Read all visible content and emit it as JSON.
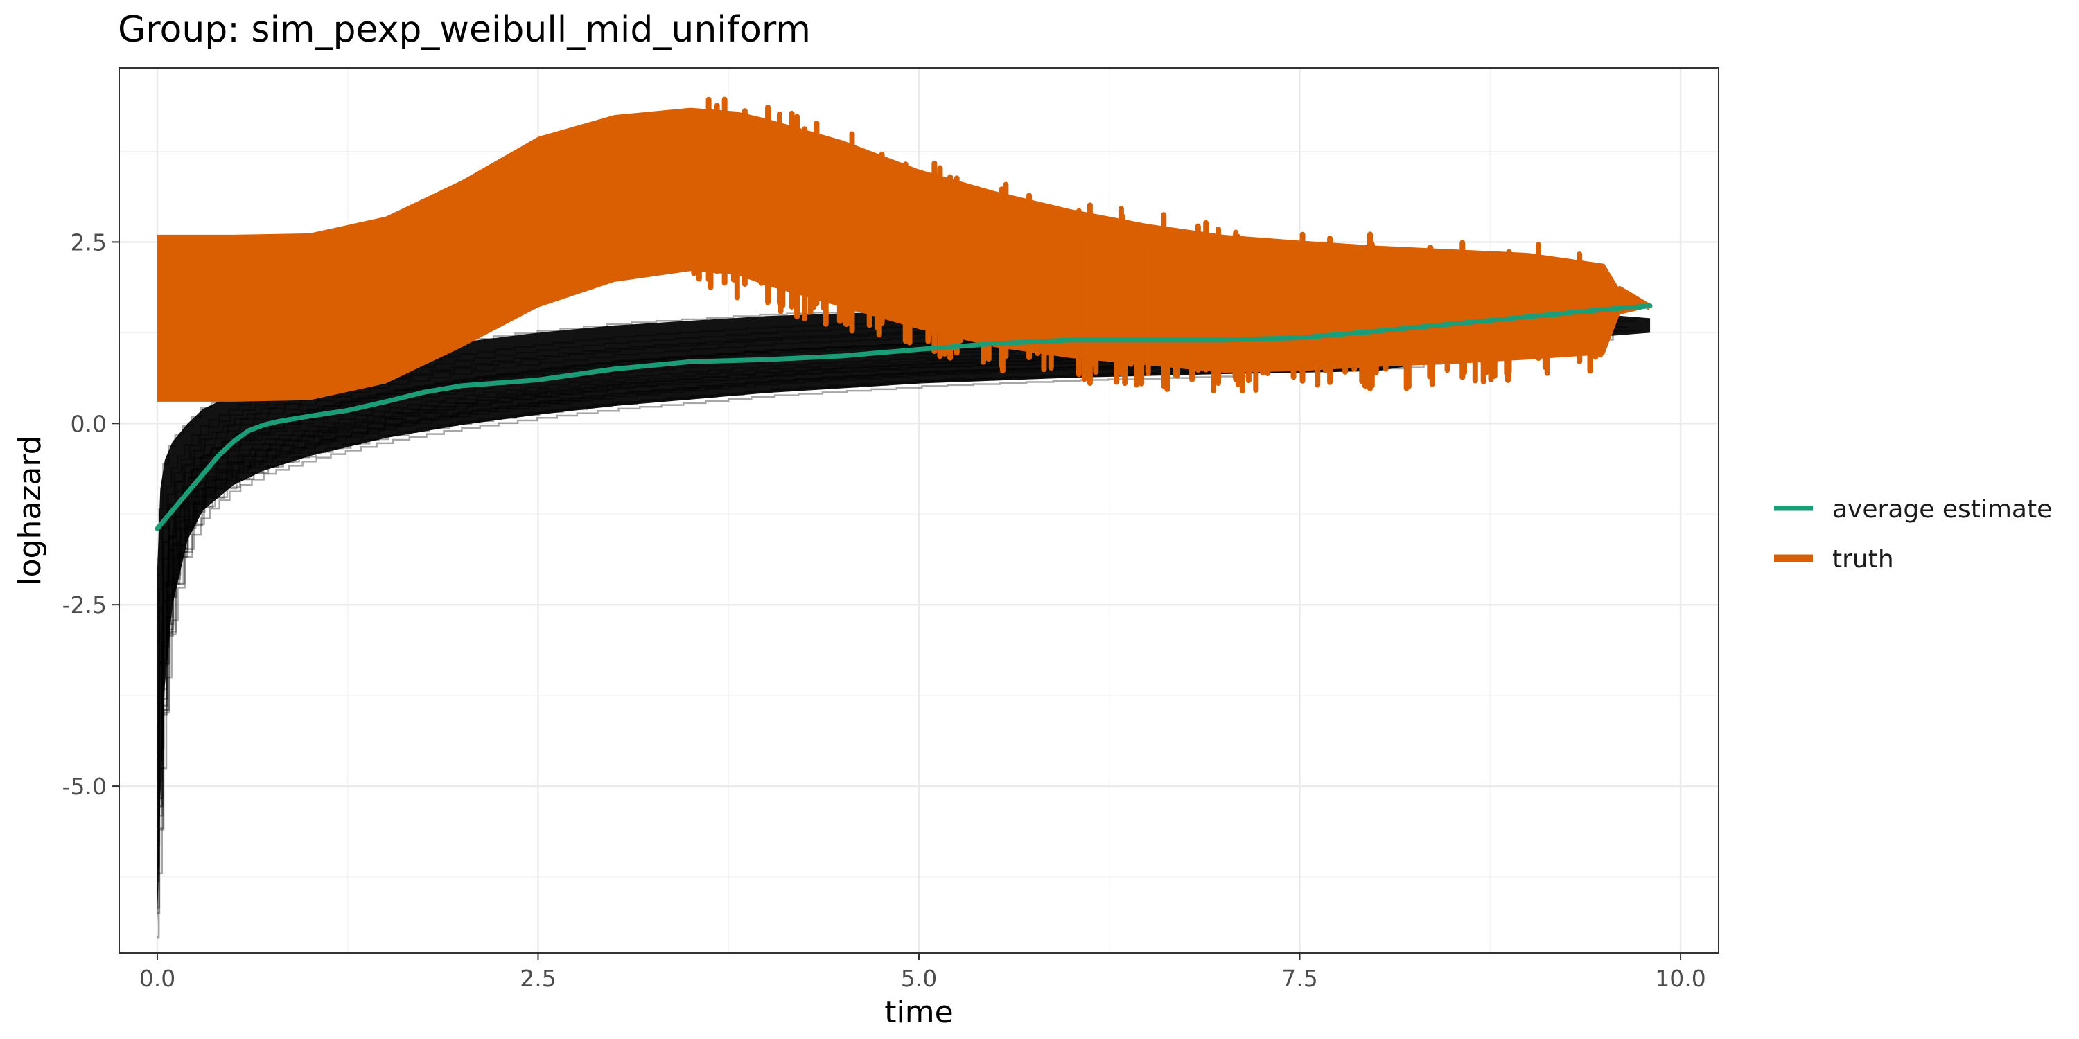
{
  "chart_data": {
    "type": "line",
    "title": "Group: sim_pexp_weibull_mid_uniform",
    "xlabel": "time",
    "ylabel": "loghazard",
    "xlim": [
      -0.25,
      10.25
    ],
    "ylim": [
      -7.3,
      4.9
    ],
    "x_ticks": [
      0.0,
      2.5,
      5.0,
      7.5,
      10.0
    ],
    "x_tick_labels": [
      "0.0",
      "2.5",
      "5.0",
      "7.5",
      "10.0"
    ],
    "y_ticks": [
      -5.0,
      -2.5,
      0.0,
      2.5
    ],
    "y_tick_labels": [
      "-5.0",
      "-2.5",
      "0.0",
      "2.5"
    ],
    "grid": true,
    "legend_position": "right",
    "series": [
      {
        "name": "average estimate",
        "color": "#1b9e77",
        "x": [
          0.0,
          0.1,
          0.2,
          0.3,
          0.4,
          0.5,
          0.6,
          0.7,
          0.8,
          1.0,
          1.25,
          1.5,
          1.75,
          2.0,
          2.5,
          3.0,
          3.5,
          4.0,
          4.5,
          5.0,
          5.5,
          6.0,
          6.5,
          7.0,
          7.5,
          8.0,
          8.5,
          9.0,
          9.5,
          9.8
        ],
        "values": [
          -1.45,
          -1.2,
          -0.95,
          -0.7,
          -0.45,
          -0.25,
          -0.1,
          -0.02,
          0.03,
          0.1,
          0.18,
          0.3,
          0.43,
          0.52,
          0.6,
          0.75,
          0.85,
          0.88,
          0.93,
          1.02,
          1.1,
          1.15,
          1.15,
          1.15,
          1.18,
          1.27,
          1.37,
          1.47,
          1.57,
          1.62
        ]
      },
      {
        "name": "truth",
        "color": "#d95f02",
        "upper_x": [
          0.0,
          0.5,
          1.0,
          1.5,
          2.0,
          2.5,
          3.0,
          3.5,
          3.8,
          4.0,
          4.5,
          5.0,
          5.5,
          6.0,
          6.5,
          7.0,
          7.5,
          8.0,
          8.5,
          9.0,
          9.5,
          9.6,
          9.8
        ],
        "upper": [
          2.6,
          2.6,
          2.62,
          2.85,
          3.35,
          3.95,
          4.25,
          4.35,
          4.3,
          4.2,
          3.9,
          3.5,
          3.2,
          2.95,
          2.75,
          2.6,
          2.52,
          2.45,
          2.4,
          2.35,
          2.2,
          1.85,
          1.65
        ],
        "lower_x": [
          0.0,
          0.5,
          1.0,
          1.5,
          2.0,
          2.5,
          3.0,
          3.5,
          3.8,
          4.0,
          4.5,
          5.0,
          5.5,
          6.0,
          6.5,
          7.0,
          7.5,
          8.0,
          8.5,
          9.0,
          9.5,
          9.6,
          9.8
        ],
        "lower": [
          0.3,
          0.3,
          0.32,
          0.55,
          1.05,
          1.6,
          1.95,
          2.1,
          2.05,
          1.9,
          1.6,
          1.3,
          1.05,
          0.9,
          0.8,
          0.7,
          0.72,
          0.78,
          0.82,
          0.88,
          0.95,
          1.5,
          1.6
        ]
      },
      {
        "name": "",
        "color": "#000000",
        "upper_x": [
          0.0,
          0.02,
          0.05,
          0.1,
          0.2,
          0.3,
          0.5,
          0.7,
          1.0,
          1.5,
          2.0,
          2.5,
          3.0,
          4.0,
          5.0,
          6.0,
          7.0,
          8.0,
          9.0,
          9.5,
          9.8
        ],
        "upper": [
          -2.0,
          -0.9,
          -0.5,
          -0.25,
          0.0,
          0.2,
          0.4,
          0.55,
          0.72,
          0.95,
          1.12,
          1.25,
          1.35,
          1.48,
          1.55,
          1.55,
          1.55,
          1.55,
          1.55,
          1.5,
          1.45
        ],
        "lower_x": [
          0.0,
          0.02,
          0.05,
          0.1,
          0.2,
          0.3,
          0.5,
          0.7,
          1.0,
          1.5,
          2.0,
          2.5,
          3.0,
          4.0,
          5.0,
          6.0,
          7.0,
          8.0,
          9.0,
          9.5,
          9.8
        ],
        "lower": [
          -6.9,
          -5.2,
          -3.6,
          -2.5,
          -1.6,
          -1.2,
          -0.85,
          -0.65,
          -0.45,
          -0.2,
          -0.02,
          0.12,
          0.24,
          0.42,
          0.55,
          0.63,
          0.68,
          0.72,
          1.05,
          1.2,
          1.25
        ]
      }
    ]
  }
}
